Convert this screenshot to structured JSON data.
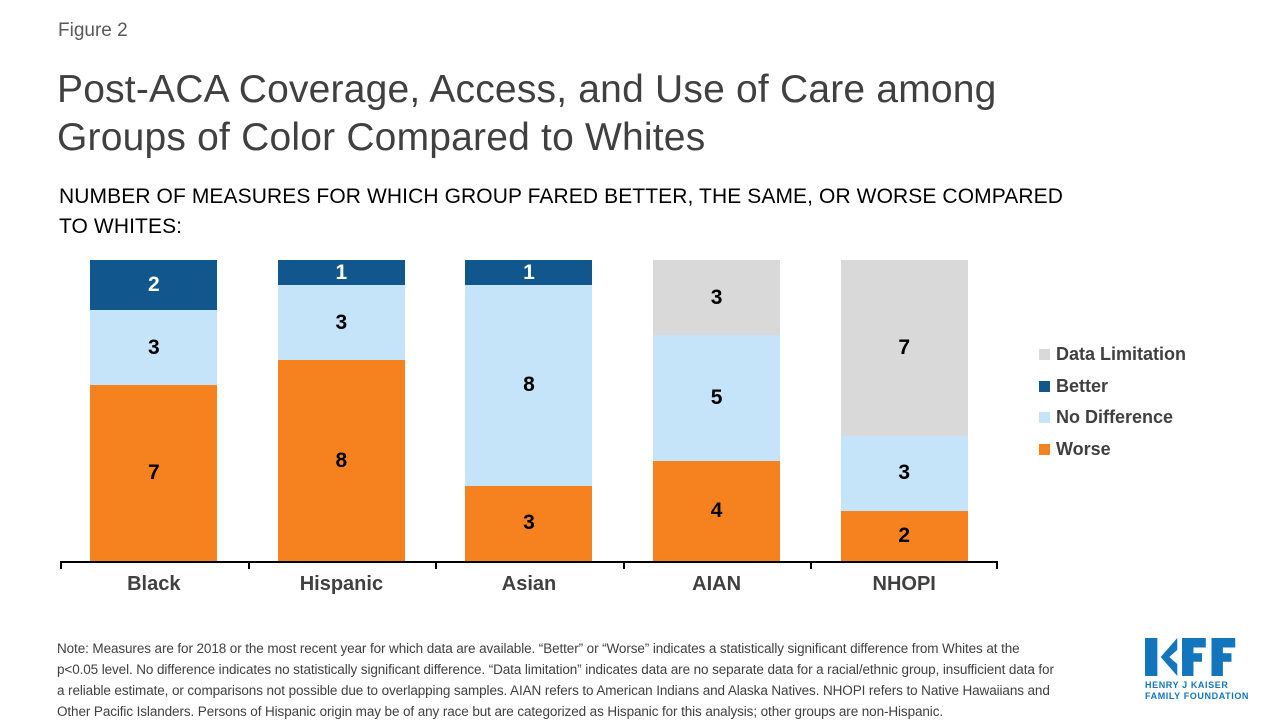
{
  "figure_label": "Figure 2",
  "title_line1": "Post-ACA Coverage, Access, and Use of Care among",
  "title_line2": "Groups of Color Compared to Whites",
  "subtitle_line1": "NUMBER OF MEASURES FOR WHICH GROUP FARED BETTER, THE SAME, OR WORSE COMPARED",
  "subtitle_line2": "TO WHITES:",
  "chart_data": {
    "type": "bar",
    "stacked": true,
    "title": "Post-ACA Coverage, Access, and Use of Care among Groups of Color Compared to Whites",
    "subtitle": "NUMBER OF MEASURES FOR WHICH GROUP FARED BETTER, THE SAME, OR WORSE COMPARED TO WHITES:",
    "categories": [
      "Black",
      "Hispanic",
      "Asian",
      "AIAN",
      "NHOPI"
    ],
    "series": [
      {
        "name": "Worse",
        "color": "#f5821f",
        "text_color": "#000000",
        "values": [
          7,
          8,
          3,
          4,
          2
        ]
      },
      {
        "name": "No Difference",
        "color": "#c5e4f9",
        "text_color": "#000000",
        "values": [
          3,
          3,
          8,
          5,
          3
        ]
      },
      {
        "name": "Better",
        "color": "#11568c",
        "text_color": "#ffffff",
        "values": [
          2,
          1,
          1,
          0,
          0
        ]
      },
      {
        "name": "Data Limitation",
        "color": "#d9d9d9",
        "text_color": "#000000",
        "values": [
          0,
          0,
          0,
          3,
          7
        ]
      }
    ],
    "ylim": [
      0,
      12
    ],
    "grid": false,
    "legend_position": "right",
    "legend_order": [
      "Data Limitation",
      "Better",
      "No Difference",
      "Worse"
    ]
  },
  "legend": {
    "items": [
      {
        "label": "Data Limitation",
        "color": "#d9d9d9"
      },
      {
        "label": "Better",
        "color": "#11568c"
      },
      {
        "label": "No Difference",
        "color": "#c5e4f9"
      },
      {
        "label": "Worse",
        "color": "#f5821f"
      }
    ]
  },
  "note": {
    "line1": "Note: Measures are for 2018 or the most recent year for which data are available. “Better” or “Worse” indicates a statistically significant difference from Whites at the",
    "line2": "p<0.05 level. No difference indicates no statistically significant difference. “Data limitation” indicates data are no separate data for a racial/ethnic group, insufficient data for",
    "line3": "a reliable estimate, or comparisons not possible due to overlapping samples. AIAN refers to American Indians and Alaska Natives. NHOPI refers to Native Hawaiians and",
    "line4": "Other Pacific Islanders. Persons of Hispanic origin may be of any race but are categorized as Hispanic for this analysis; other groups are non-Hispanic."
  },
  "logo": {
    "name": "KFF",
    "line1": "HENRY J KAISER",
    "line2": "FAMILY FOUNDATION",
    "color": "#1375bc"
  }
}
